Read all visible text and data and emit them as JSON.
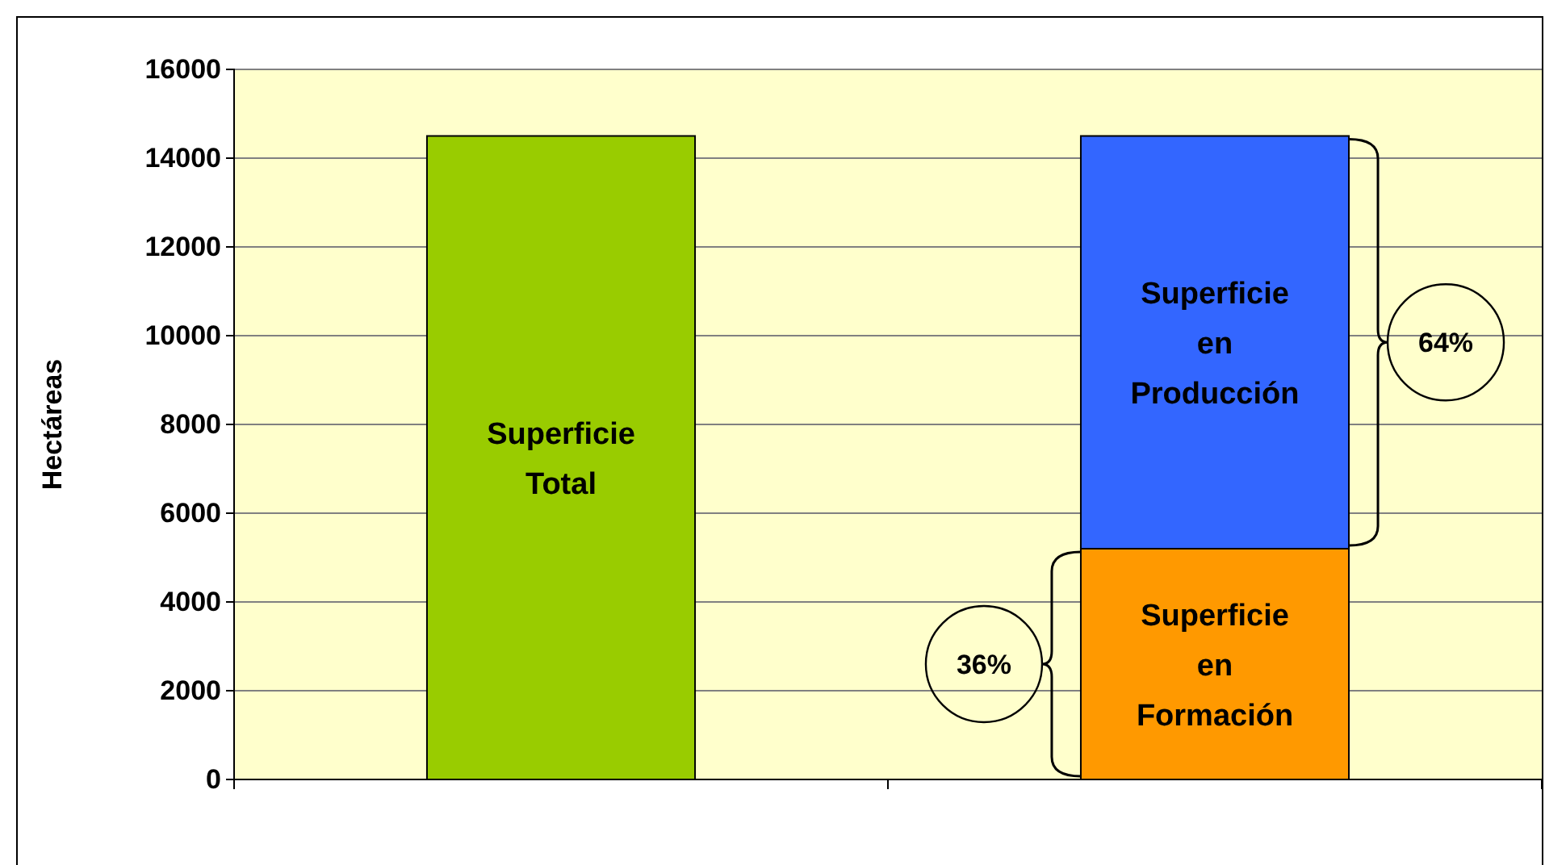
{
  "chart_data": {
    "type": "bar",
    "ylabel": "Hectáreas",
    "categories": [
      null,
      null
    ],
    "stacked": true,
    "ylim": [
      0,
      16000
    ],
    "yticks": [
      0,
      2000,
      4000,
      6000,
      8000,
      10000,
      12000,
      14000,
      16000
    ],
    "grid": "y",
    "series": [
      {
        "name": "Superficie Total",
        "color": "#99cc00",
        "values": [
          14500,
          null
        ]
      },
      {
        "name": "Superficie en Formación",
        "color": "#ff9900",
        "values": [
          null,
          5200
        ]
      },
      {
        "name": "Superficie en Producción",
        "color": "#3366ff",
        "values": [
          null,
          9300
        ]
      }
    ],
    "annotations": [
      "36%",
      "64%"
    ]
  }
}
